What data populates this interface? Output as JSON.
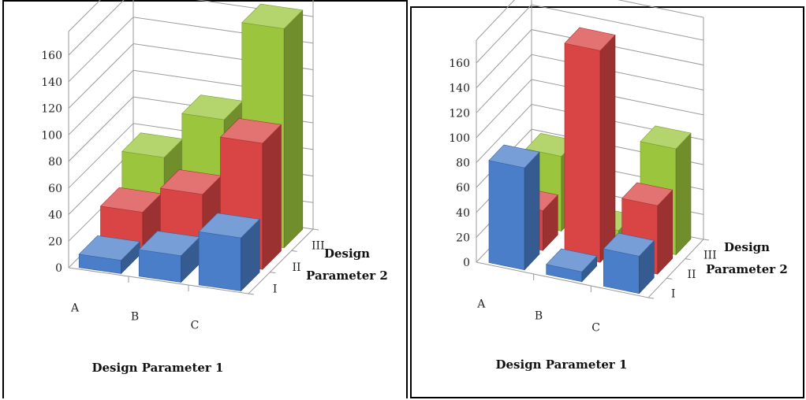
{
  "chart_data": [
    {
      "type": "bar",
      "subtype": "3d-column",
      "categories": [
        "A",
        "B",
        "C"
      ],
      "depth_categories": [
        "I",
        "II",
        "III"
      ],
      "series": [
        {
          "values": [
            10,
            20,
            40
          ],
          "color": "#4a7ec9"
        },
        {
          "values": [
            30,
            50,
            95
          ],
          "color": "#d94444"
        },
        {
          "values": [
            55,
            90,
            165
          ],
          "color": "#9bc53d"
        }
      ],
      "y_ticks": [
        "0",
        "20",
        "40",
        "60",
        "80",
        "100",
        "120",
        "140",
        "160"
      ],
      "ylim": [
        0,
        160
      ],
      "xlabel": "Design Parameter 1",
      "zlabel_line1": "Design",
      "zlabel_line2": "Parameter 2",
      "grid": true
    },
    {
      "type": "bar",
      "subtype": "3d-column",
      "categories": [
        "A",
        "B",
        "C"
      ],
      "depth_categories": [
        "I",
        "II",
        "III"
      ],
      "series": [
        {
          "values": [
            82,
            8,
            30
          ],
          "color": "#4a7ec9"
        },
        {
          "values": [
            32,
            170,
            55
          ],
          "color": "#d94444"
        },
        {
          "values": [
            60,
            10,
            85
          ],
          "color": "#9bc53d"
        }
      ],
      "y_ticks": [
        "0",
        "20",
        "40",
        "60",
        "80",
        "100",
        "120",
        "140",
        "160"
      ],
      "ylim": [
        0,
        160
      ],
      "xlabel": "Design Parameter 1",
      "zlabel_line1": "Design",
      "zlabel_line2": "Parameter 2",
      "grid": true
    }
  ]
}
